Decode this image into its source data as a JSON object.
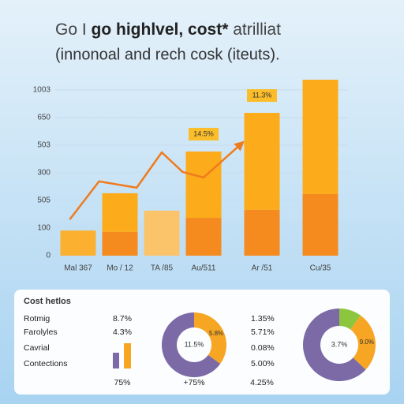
{
  "chart_data": [
    {
      "type": "bar",
      "title": [
        "Go I ",
        "go highlvel, cost*",
        " atrilliat"
      ],
      "subtitle": "(innonoal and rech cosk (iteuts).",
      "categories": [
        "Mal 367",
        "Mo / 12",
        "TA /85",
        "Au/511",
        "Ar /51",
        "Cu/35"
      ],
      "series": [
        {
          "colors": [
            "#fbb030",
            "#f58a1f",
            "#fcc46a",
            "#f58a1f",
            "#f58a1f",
            "#f58a1f"
          ],
          "values": [
            91,
            86,
            163,
            137,
            166,
            223
          ]
        },
        {
          "color": "#fcab1a",
          "values": [
            null,
            140,
            null,
            240,
            351,
            414
          ]
        }
      ],
      "line": {
        "color": "#ef7b1d",
        "x": [
          -0.2,
          0.5,
          1.4,
          2,
          2.5,
          3,
          3.65
        ],
        "values": [
          131,
          269,
          246,
          374,
          303,
          283,
          406
        ]
      },
      "annotations": [
        "11.3%",
        "14.5%"
      ],
      "ylim": [
        0,
        640
      ],
      "yticks": [
        0,
        100,
        {
          "value": 200,
          "label": "505"
        },
        300,
        {
          "value": 400,
          "label": "503"
        },
        {
          "value": 500,
          "label": "650"
        },
        {
          "value": 600,
          "label": "1003"
        }
      ],
      "grid": true
    },
    {
      "type": "pie",
      "values": [
        35,
        65
      ],
      "colors": [
        "#f6a623",
        "#7b6aa6"
      ],
      "center_label": "11.5%",
      "annotations": [
        "5.8%"
      ]
    },
    {
      "type": "pie",
      "values": [
        10,
        27,
        63
      ],
      "colors": [
        "#8cc63f",
        "#f6a623",
        "#7b6aa6"
      ],
      "center_label": "3.7%",
      "annotations": [
        "9.0%"
      ]
    }
  ],
  "panel": {
    "title": "Cost hetlos",
    "rows": [
      [
        "Rotmig",
        "8.7%",
        "1.35%"
      ],
      [
        "Farolyles",
        "4.3%",
        "5.71%"
      ],
      [
        "Cavrial",
        null,
        "0.08%"
      ],
      [
        "Contections",
        null,
        "5.00%"
      ]
    ],
    "footer": [
      "75%",
      "+75%",
      "4.25%"
    ]
  }
}
